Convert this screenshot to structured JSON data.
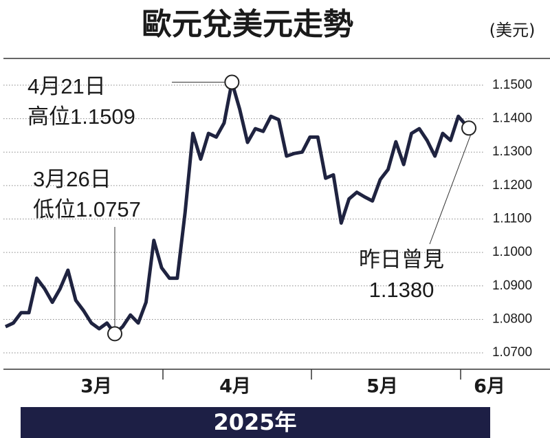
{
  "chart_data": {
    "type": "line",
    "title": "歐元兌美元走勢",
    "unit": "(美元)",
    "footer": "2025年",
    "months": [
      "3月",
      "4月",
      "5月",
      "6月"
    ],
    "categories": [
      null,
      null,
      null,
      null,
      null,
      null,
      null,
      null,
      null,
      null,
      null,
      null,
      null,
      null,
      null,
      null,
      null,
      null,
      null,
      null,
      null,
      null,
      null,
      null,
      null,
      null,
      null,
      null,
      null,
      null,
      null,
      null,
      null,
      null,
      null,
      null,
      null,
      null,
      null,
      null,
      null,
      null,
      null,
      null,
      null,
      null,
      null,
      null,
      null,
      null,
      null,
      null,
      null,
      null,
      null,
      null,
      null,
      null,
      null,
      null
    ],
    "values": [
      1.0778,
      1.0789,
      1.082,
      1.082,
      1.0923,
      1.0892,
      1.0851,
      1.0892,
      1.0947,
      1.0857,
      1.0826,
      1.0789,
      1.0772,
      1.0789,
      1.0757,
      1.0778,
      1.0813,
      1.0789,
      1.0851,
      1.1036,
      1.0954,
      1.0923,
      1.0923,
      1.1119,
      1.1356,
      1.1279,
      1.1356,
      1.1345,
      1.1387,
      1.1509,
      1.1428,
      1.1329,
      1.137,
      1.1362,
      1.1407,
      1.1397,
      1.1288,
      1.1296,
      1.13,
      1.1345,
      1.1345,
      1.1222,
      1.1232,
      1.1088,
      1.116,
      1.118,
      1.1166,
      1.1154,
      1.1218,
      1.1248,
      1.1331,
      1.1263,
      1.1356,
      1.137,
      1.1335,
      1.1288,
      1.1356,
      1.1335,
      1.1407,
      1.138
    ],
    "color": "#1f2340",
    "ylim": [
      1.0655,
      1.158
    ],
    "yticks": [
      {
        "value": 1.07,
        "label": "1.0700"
      },
      {
        "value": 1.08,
        "label": "1.0800"
      },
      {
        "value": 1.09,
        "label": "1.0900"
      },
      {
        "value": 1.1,
        "label": "1.1000"
      },
      {
        "value": 1.11,
        "label": "1.1100"
      },
      {
        "value": 1.12,
        "label": "1.1200"
      },
      {
        "value": 1.13,
        "label": "1.1300"
      },
      {
        "value": 1.14,
        "label": "1.1400"
      },
      {
        "value": 1.15,
        "label": "1.1500"
      }
    ],
    "grid": true,
    "annotations": {
      "high": [
        "4月21日",
        "高位1.1509"
      ],
      "low": [
        "3月26日",
        "低位1.0757"
      ],
      "last": [
        "昨日曾見",
        "1.1380"
      ]
    }
  }
}
